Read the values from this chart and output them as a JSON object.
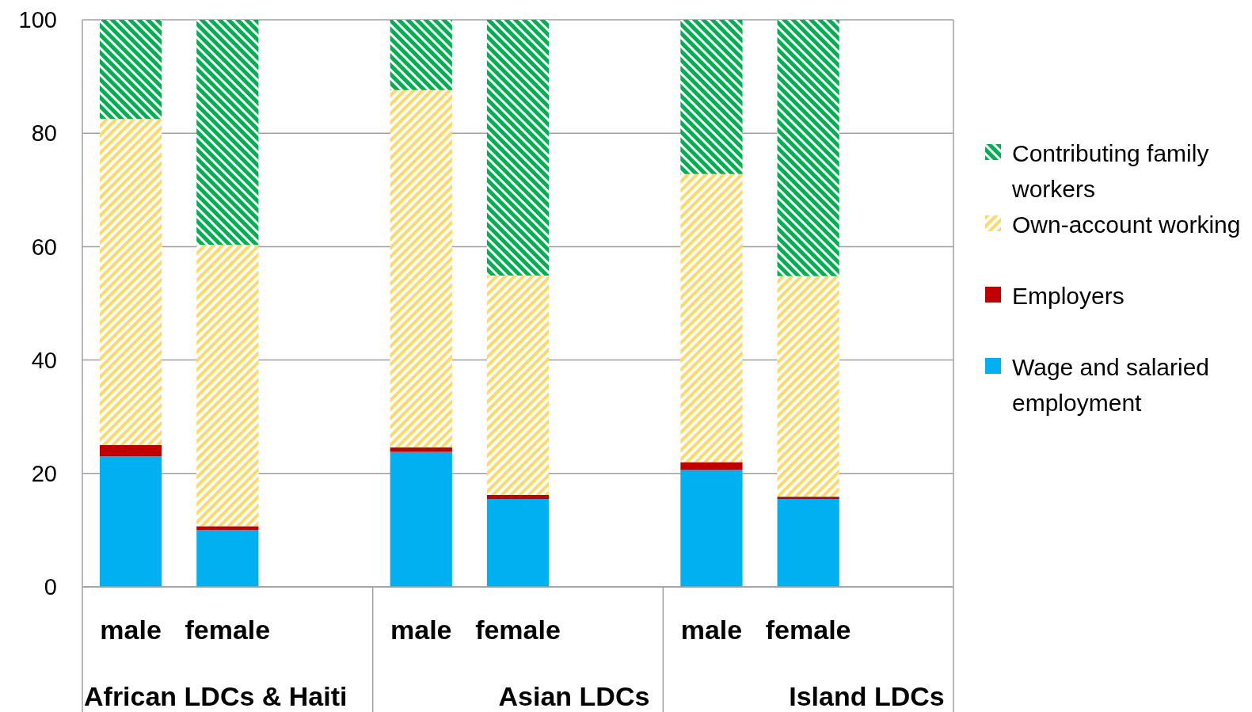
{
  "chart_data": {
    "type": "bar",
    "stacked": true,
    "categories": [
      "male",
      "female",
      null,
      "male",
      "female",
      null,
      "male",
      "female",
      null
    ],
    "annotations": [
      "African LDCs & Haiti",
      "Asian LDCs",
      "Island LDCs"
    ],
    "series": [
      {
        "name": "Wage and salaried employment",
        "color": "#00b0f0",
        "values": [
          23,
          10,
          null,
          23.8,
          15.5,
          null,
          20.6,
          15.5,
          null
        ]
      },
      {
        "name": "Employers",
        "color": "#c00000",
        "values": [
          2,
          0.7,
          null,
          0.8,
          0.7,
          null,
          1.4,
          0.4,
          null
        ]
      },
      {
        "name": "Own-account working",
        "color": "#ffd966",
        "values": [
          57.5,
          49.6,
          null,
          63,
          38.7,
          null,
          50.8,
          38.9,
          null
        ]
      },
      {
        "name": "Contributing family workers",
        "color": "#00b050",
        "values": [
          17.5,
          39.7,
          null,
          12.4,
          45.1,
          null,
          27.2,
          45.2,
          null
        ]
      }
    ],
    "ylim": [
      0,
      100
    ],
    "yticks": [
      0,
      20,
      40,
      60,
      80,
      100
    ],
    "grid": "y",
    "legend": "right"
  }
}
